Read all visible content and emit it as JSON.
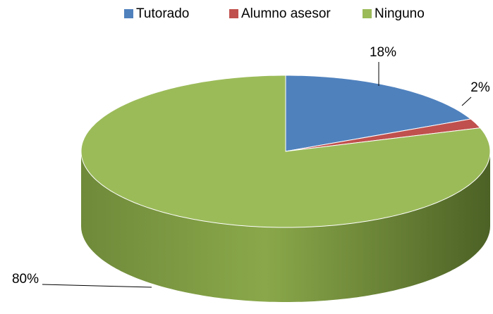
{
  "chart_data": {
    "type": "pie",
    "categories": [
      "Tutorado",
      "Alumno asesor",
      "Ninguno"
    ],
    "values": [
      18,
      2,
      80
    ],
    "value_labels": [
      "18%",
      "2%",
      "80%"
    ],
    "colors": [
      "#4f81bd",
      "#c0504d",
      "#9bbb59"
    ],
    "legend": "top"
  }
}
